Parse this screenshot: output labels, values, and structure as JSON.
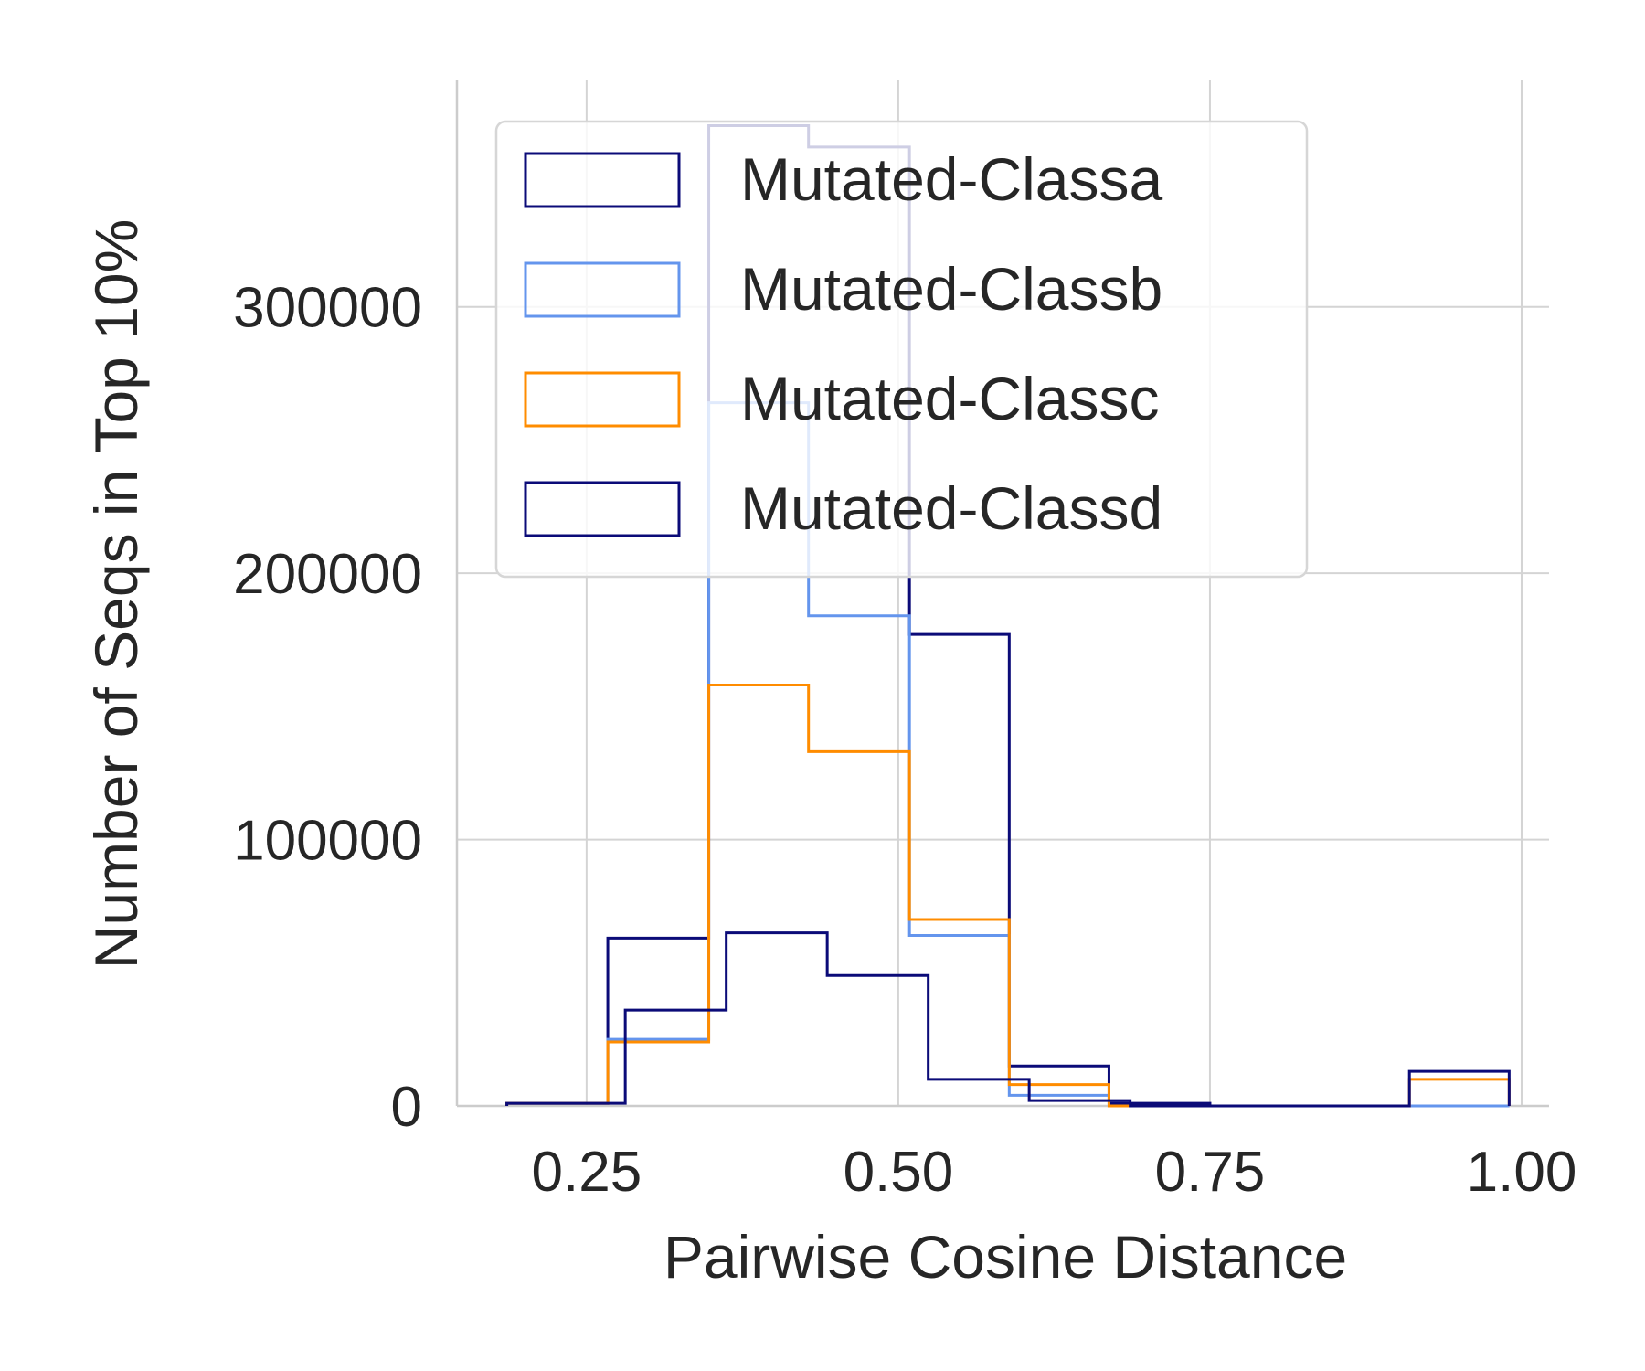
{
  "chart_data": {
    "type": "histogram-step",
    "xlabel": "Pairwise Cosine Distance",
    "ylabel": "Number of Seqs in Top 10%",
    "xlim": [
      0.146,
      1.022
    ],
    "ylim": [
      0,
      385000
    ],
    "xticks": [
      0.25,
      0.5,
      0.75,
      1.0
    ],
    "xtick_labels": [
      "0.25",
      "0.50",
      "0.75",
      "1.00"
    ],
    "yticks": [
      0,
      100000,
      200000,
      300000
    ],
    "ytick_labels": [
      "0",
      "100000",
      "200000",
      "300000"
    ],
    "grid": true,
    "legend_placement": "top-left",
    "series": [
      {
        "name": "Mutated-Classa",
        "color": "#0b0b78",
        "edges": [
          0.186,
          0.267,
          0.348,
          0.428,
          0.509,
          0.589,
          0.669,
          0.75,
          0.83,
          0.91,
          0.99
        ],
        "values": [
          1000,
          63000,
          368000,
          360000,
          177000,
          15000,
          1000,
          0,
          0,
          0
        ]
      },
      {
        "name": "Mutated-Classb",
        "color": "#6495ed",
        "edges": [
          0.186,
          0.267,
          0.348,
          0.428,
          0.509,
          0.589,
          0.669,
          0.75,
          0.83,
          0.91,
          0.99
        ],
        "values": [
          1000,
          25000,
          264000,
          184000,
          64000,
          4000,
          0,
          0,
          0,
          0
        ]
      },
      {
        "name": "Mutated-Classc",
        "color": "#ff8c00",
        "edges": [
          0.186,
          0.267,
          0.348,
          0.428,
          0.509,
          0.589,
          0.669,
          0.75,
          0.83,
          0.91,
          0.99
        ],
        "values": [
          1000,
          24000,
          158000,
          133000,
          70000,
          8000,
          0,
          0,
          0,
          10000
        ]
      },
      {
        "name": "Mutated-Classd",
        "color": "#0b0b78",
        "edges": [
          0.186,
          0.281,
          0.362,
          0.443,
          0.524,
          0.605,
          0.686,
          0.767,
          0.848,
          0.91,
          0.99
        ],
        "values": [
          1000,
          36000,
          65000,
          49000,
          10000,
          2000,
          0,
          0,
          0,
          13000
        ]
      }
    ]
  }
}
